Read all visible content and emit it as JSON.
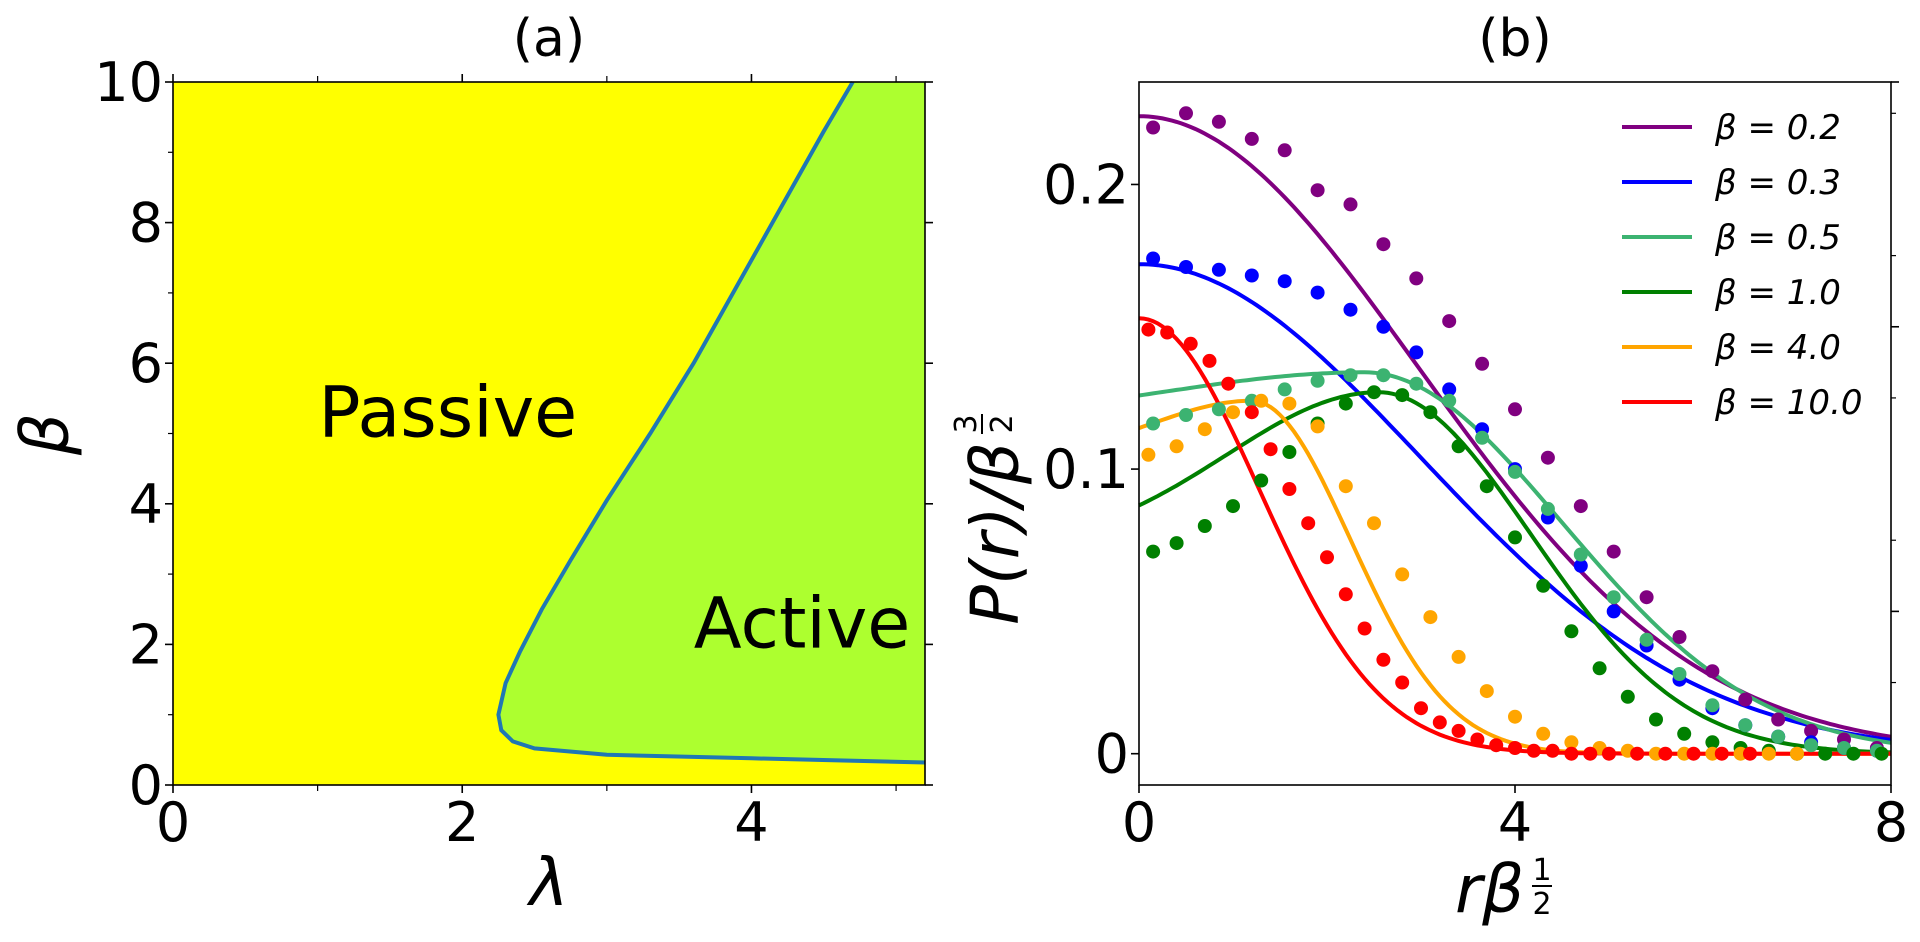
{
  "chart_data": [
    {
      "type": "area",
      "title": "(a)",
      "xlabel": "λ",
      "ylabel": "β",
      "xlim": [
        0,
        5.2
      ],
      "ylim": [
        0,
        10
      ],
      "xticks": [
        0,
        2,
        4
      ],
      "xtick_labels": [
        "0",
        "2",
        "4"
      ],
      "yticks": [
        0,
        2,
        4,
        6,
        8,
        10
      ],
      "ytick_labels": [
        "0",
        "2",
        "4",
        "6",
        "8",
        "10"
      ],
      "regions": [
        {
          "name": "Passive",
          "label": "Passive",
          "color": "#ffff00",
          "label_at": [
            1.9,
            5.3
          ]
        },
        {
          "name": "Active",
          "label": "Active",
          "color": "#adff2f",
          "label_at": [
            4.35,
            2.3
          ]
        }
      ],
      "boundary": {
        "color": "#1f77b4",
        "lambda": [
          4.7,
          4.5,
          4.2,
          3.9,
          3.6,
          3.3,
          3.0,
          2.75,
          2.55,
          2.4,
          2.3,
          2.25,
          2.27,
          2.35,
          2.5,
          3.0,
          4.0,
          5.2
        ],
        "beta": [
          10.0,
          9.3,
          8.2,
          7.1,
          6.0,
          5.0,
          4.05,
          3.2,
          2.5,
          1.9,
          1.45,
          1.0,
          0.78,
          0.62,
          0.52,
          0.43,
          0.38,
          0.32
        ]
      }
    },
    {
      "type": "line",
      "title": "(b)",
      "xlabel": "rβ^(1/2)",
      "ylabel": "P(r)/β^(3/2)",
      "xlim": [
        0,
        8
      ],
      "ylim": [
        -0.011,
        0.236
      ],
      "xticks": [
        0,
        4,
        8
      ],
      "xtick_labels": [
        "0",
        "4",
        "8"
      ],
      "yticks": [
        0,
        0.1,
        0.2
      ],
      "ytick_labels": [
        "0",
        "0.1",
        "0.2"
      ],
      "legend_position": "top-right",
      "series": [
        {
          "name": "β = 0.2",
          "legend_label": "β = 0.2",
          "color": "#800080",
          "curve": {
            "amp": 0.224,
            "center": 0.0,
            "sigma": 2.97
          },
          "points_x": [
            0.15,
            0.5,
            0.85,
            1.2,
            1.55,
            1.9,
            2.25,
            2.6,
            2.95,
            3.3,
            3.65,
            4.0,
            4.35,
            4.7,
            5.05,
            5.4,
            5.75,
            6.1,
            6.45,
            6.8,
            7.15,
            7.5,
            7.85
          ],
          "points_y": [
            0.22,
            0.225,
            0.222,
            0.216,
            0.212,
            0.198,
            0.193,
            0.179,
            0.167,
            0.152,
            0.137,
            0.121,
            0.104,
            0.087,
            0.071,
            0.055,
            0.041,
            0.029,
            0.019,
            0.012,
            0.008,
            0.005,
            0.002
          ]
        },
        {
          "name": "β = 0.3",
          "legend_label": "β = 0.3",
          "color": "#0000ff",
          "curve": {
            "amp": 0.172,
            "center": 0.0,
            "sigma": 2.99
          },
          "points_x": [
            0.15,
            0.5,
            0.85,
            1.2,
            1.55,
            1.9,
            2.25,
            2.6,
            2.95,
            3.3,
            3.65,
            4.0,
            4.35,
            4.7,
            5.05,
            5.4,
            5.75,
            6.1,
            6.45,
            6.8,
            7.15,
            7.5,
            7.85
          ],
          "points_y": [
            0.174,
            0.171,
            0.17,
            0.168,
            0.166,
            0.162,
            0.156,
            0.15,
            0.141,
            0.128,
            0.114,
            0.1,
            0.083,
            0.066,
            0.05,
            0.038,
            0.026,
            0.016,
            0.01,
            0.006,
            0.004,
            0.002,
            0.001
          ]
        },
        {
          "name": "β = 0.5",
          "legend_label": "β = 0.5",
          "color": "#3cb371",
          "curve": {
            "amp": 0.134,
            "center": 2.4,
            "sigma": 2.1,
            "offset": 0.117
          },
          "points_x": [
            0.15,
            0.5,
            0.85,
            1.2,
            1.55,
            1.9,
            2.25,
            2.6,
            2.95,
            3.3,
            3.65,
            4.0,
            4.35,
            4.7,
            5.05,
            5.4,
            5.75,
            6.1,
            6.45,
            6.8,
            7.15,
            7.5,
            7.85
          ],
          "points_y": [
            0.116,
            0.119,
            0.121,
            0.124,
            0.128,
            0.131,
            0.133,
            0.133,
            0.13,
            0.124,
            0.111,
            0.099,
            0.086,
            0.07,
            0.055,
            0.04,
            0.028,
            0.017,
            0.01,
            0.006,
            0.003,
            0.002,
            0.001
          ]
        },
        {
          "name": "β = 1.0",
          "legend_label": "β = 1.0",
          "color": "#008000",
          "curve": {
            "amp": 0.127,
            "center": 2.55,
            "sigma": 1.62,
            "offset": 0.071
          },
          "points_x": [
            0.15,
            0.4,
            0.7,
            1.0,
            1.3,
            1.6,
            1.9,
            2.2,
            2.5,
            2.8,
            3.1,
            3.4,
            3.7,
            4.0,
            4.3,
            4.6,
            4.9,
            5.2,
            5.5,
            5.8,
            6.1,
            6.4,
            6.7,
            7.0,
            7.3,
            7.6,
            7.9
          ],
          "points_y": [
            0.071,
            0.074,
            0.08,
            0.087,
            0.096,
            0.106,
            0.116,
            0.123,
            0.127,
            0.126,
            0.12,
            0.108,
            0.094,
            0.076,
            0.059,
            0.043,
            0.03,
            0.02,
            0.012,
            0.007,
            0.004,
            0.002,
            0.001,
            0.0,
            0.0,
            0.0,
            0.0
          ]
        },
        {
          "name": "β = 4.0",
          "legend_label": "β = 4.0",
          "color": "#ffa500",
          "curve": {
            "amp": 0.124,
            "center": 1.2,
            "sigma": 1.05,
            "offset": 0.104
          },
          "points_x": [
            0.1,
            0.4,
            0.7,
            1.0,
            1.3,
            1.6,
            1.9,
            2.2,
            2.5,
            2.8,
            3.1,
            3.4,
            3.7,
            4.0,
            4.3,
            4.6,
            4.9,
            5.2,
            5.5,
            5.8,
            6.1,
            6.4,
            6.7,
            7.0
          ],
          "points_y": [
            0.105,
            0.108,
            0.114,
            0.12,
            0.124,
            0.123,
            0.115,
            0.094,
            0.081,
            0.063,
            0.048,
            0.034,
            0.022,
            0.013,
            0.007,
            0.004,
            0.002,
            0.001,
            0.0,
            0.0,
            0.0,
            0.0,
            0.0,
            0.0
          ]
        },
        {
          "name": "β = 10.0",
          "legend_label": "β = 10.0",
          "color": "#ff0000",
          "curve": {
            "amp": 0.153,
            "center": 0.0,
            "sigma": 1.28
          },
          "points_x": [
            0.1,
            0.3,
            0.55,
            0.75,
            0.95,
            1.2,
            1.4,
            1.6,
            1.8,
            2.0,
            2.2,
            2.4,
            2.6,
            2.8,
            3.0,
            3.2,
            3.4,
            3.6,
            3.8,
            4.0,
            4.2,
            4.4,
            4.6,
            4.8,
            5.0,
            5.3,
            5.6,
            5.9,
            6.2,
            6.5
          ],
          "points_y": [
            0.149,
            0.148,
            0.144,
            0.138,
            0.13,
            0.12,
            0.107,
            0.093,
            0.081,
            0.069,
            0.056,
            0.044,
            0.033,
            0.025,
            0.016,
            0.011,
            0.008,
            0.005,
            0.003,
            0.002,
            0.001,
            0.001,
            0.0,
            0.0,
            0.0,
            0.0,
            0.0,
            0.0,
            0.0,
            0.0
          ]
        }
      ]
    }
  ]
}
